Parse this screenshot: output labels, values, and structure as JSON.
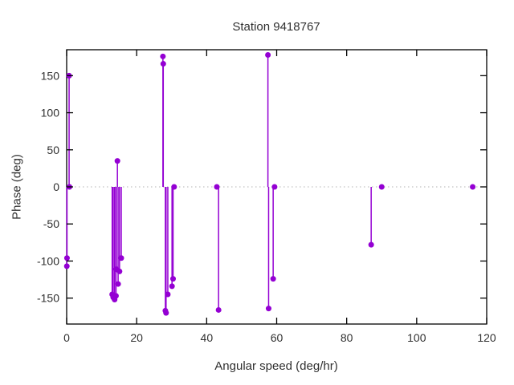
{
  "title": "Station 9418767",
  "chart_data": {
    "type": "scatter",
    "subtype": "stem-impulses-with-points",
    "title": "Station 9418767",
    "xlabel": "Angular speed (deg/hr)",
    "ylabel": "Phase (deg)",
    "xlim": [
      0,
      120
    ],
    "ylim": [
      -185,
      185
    ],
    "x_ticks": [
      0,
      20,
      40,
      60,
      80,
      100,
      120
    ],
    "y_ticks": [
      -150,
      -100,
      -50,
      0,
      50,
      100,
      150
    ],
    "grid": false,
    "zero_line": true,
    "legend": "none",
    "series_color": "#9400d3",
    "zero_line_color": "#b4b4b4",
    "border_color": "#000000",
    "text_color": "#303030",
    "points": [
      [
        0.05,
        -107
      ],
      [
        0.1,
        -96
      ],
      [
        0.7,
        150
      ],
      [
        0.8,
        0
      ],
      [
        13.0,
        -145
      ],
      [
        13.3,
        -149
      ],
      [
        13.7,
        -152
      ],
      [
        14.1,
        -147
      ],
      [
        14.2,
        -111
      ],
      [
        14.5,
        35
      ],
      [
        14.7,
        -131
      ],
      [
        15.1,
        -114
      ],
      [
        15.6,
        -96
      ],
      [
        27.5,
        176
      ],
      [
        27.6,
        166
      ],
      [
        28.2,
        -167
      ],
      [
        28.4,
        -170
      ],
      [
        28.9,
        -145
      ],
      [
        30.1,
        -134
      ],
      [
        30.4,
        -124
      ],
      [
        30.7,
        0
      ],
      [
        42.9,
        0
      ],
      [
        43.4,
        -166
      ],
      [
        57.5,
        178
      ],
      [
        57.7,
        -164
      ],
      [
        59.0,
        -124
      ],
      [
        59.4,
        0
      ],
      [
        87.0,
        -78
      ],
      [
        90.0,
        0
      ],
      [
        116.0,
        0
      ]
    ]
  }
}
